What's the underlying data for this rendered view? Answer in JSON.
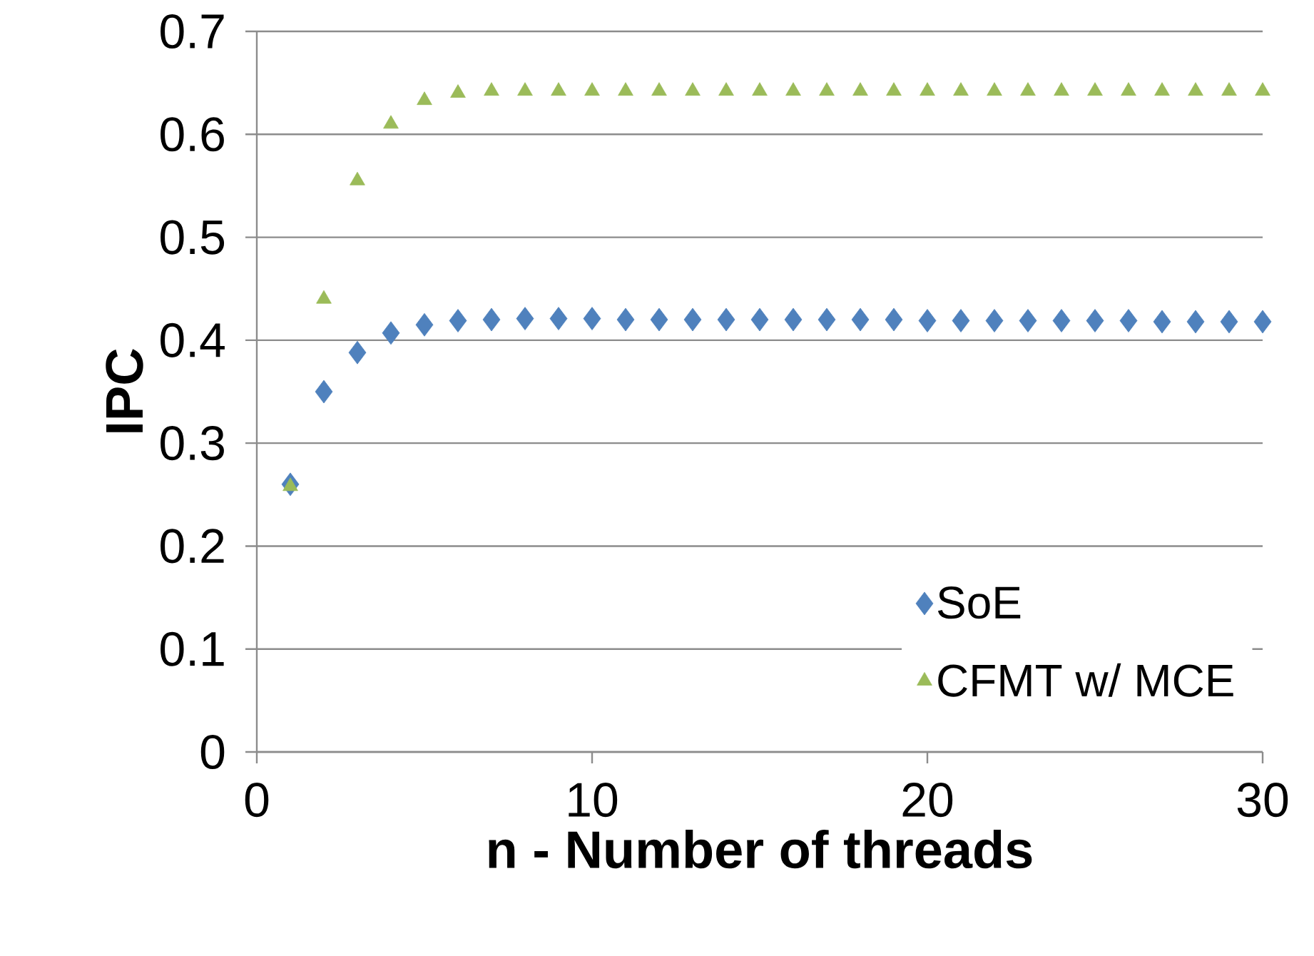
{
  "chart_data": {
    "type": "scatter",
    "xlabel": "n - Number of threads",
    "ylabel": "IPC",
    "x": [
      1,
      2,
      3,
      4,
      5,
      6,
      7,
      8,
      9,
      10,
      11,
      12,
      13,
      14,
      15,
      16,
      17,
      18,
      19,
      20,
      21,
      22,
      23,
      24,
      25,
      26,
      27,
      28,
      29,
      30
    ],
    "series": [
      {
        "name": "SoE",
        "color": "#4f81bd",
        "marker": "diamond",
        "values": [
          0.26,
          0.35,
          0.388,
          0.407,
          0.415,
          0.419,
          0.42,
          0.421,
          0.421,
          0.421,
          0.42,
          0.42,
          0.42,
          0.42,
          0.42,
          0.42,
          0.42,
          0.42,
          0.42,
          0.419,
          0.419,
          0.419,
          0.419,
          0.419,
          0.419,
          0.419,
          0.418,
          0.418,
          0.418,
          0.418
        ]
      },
      {
        "name": "CFMT w/ MCE",
        "color": "#9bbb59",
        "marker": "triangle",
        "values": [
          0.258,
          0.44,
          0.555,
          0.61,
          0.633,
          0.64,
          0.642,
          0.642,
          0.642,
          0.642,
          0.642,
          0.642,
          0.642,
          0.642,
          0.642,
          0.642,
          0.642,
          0.642,
          0.642,
          0.642,
          0.642,
          0.642,
          0.642,
          0.642,
          0.642,
          0.642,
          0.642,
          0.642,
          0.642,
          0.642
        ]
      }
    ],
    "xlim": [
      0,
      30
    ],
    "xticks": [
      0,
      10,
      20,
      30
    ],
    "ylim": [
      0,
      0.7
    ],
    "yticks": [
      {
        "value": 0,
        "label": "0"
      },
      0.1,
      0.2,
      0.3,
      0.4,
      0.5,
      0.6,
      0.7
    ],
    "grid": "y",
    "legend": "bottom right"
  }
}
